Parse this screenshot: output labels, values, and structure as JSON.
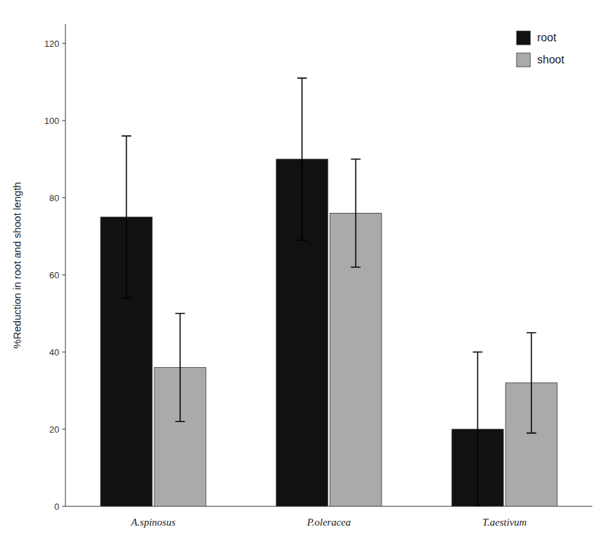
{
  "chart_data": {
    "type": "bar",
    "categories": [
      "A.spinosus",
      "P.oleracea",
      "T.aestivum"
    ],
    "series": [
      {
        "name": "root",
        "color": "#111111",
        "values": [
          75,
          90,
          20
        ],
        "errors": [
          21,
          21,
          20
        ]
      },
      {
        "name": "shoot",
        "color": "#aaaaaa",
        "values": [
          36,
          76,
          32
        ],
        "errors": [
          14,
          14,
          13
        ]
      }
    ],
    "ylabel": "%Reduction in root and shoot length",
    "ylim": [
      0,
      125
    ],
    "yticks": [
      0,
      20,
      40,
      60,
      80,
      100,
      120
    ],
    "legend": "upper right",
    "grid": false
  }
}
